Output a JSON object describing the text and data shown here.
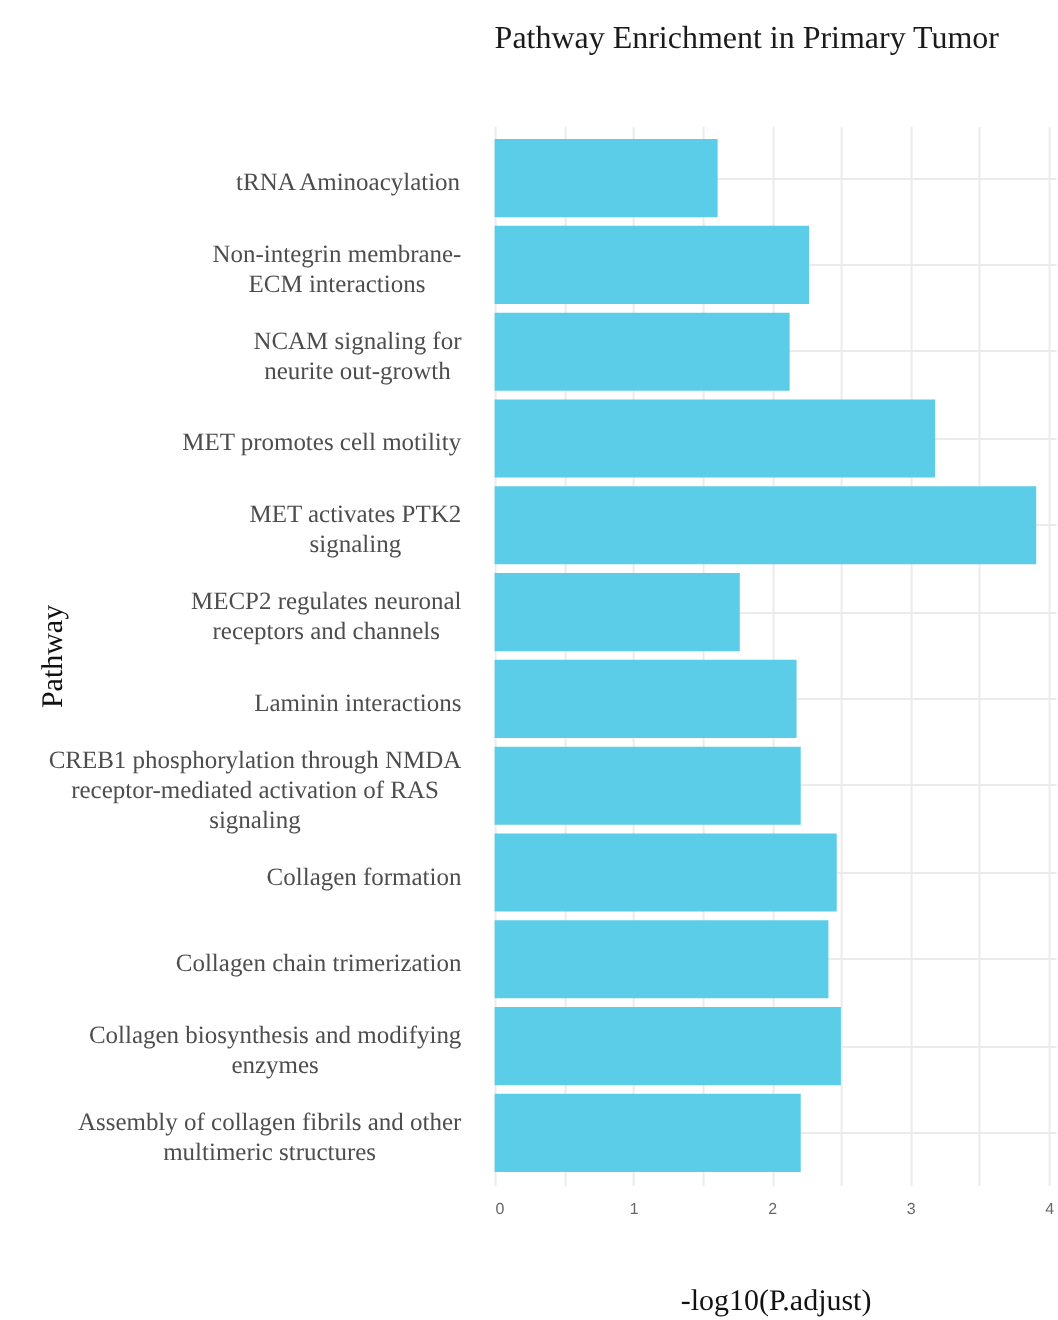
{
  "chart_data": {
    "type": "bar",
    "orientation": "horizontal",
    "title": "Pathway Enrichment in Primary Tumor",
    "xlabel": "-log10(P.adjust)",
    "ylabel": "Pathway",
    "categories": [
      "tRNA Aminoacylation",
      "Non-integrin membrane-\nECM interactions",
      "NCAM signaling for\nneurite out-growth",
      "MET promotes cell motility",
      "MET activates PTK2\nsignaling",
      "MECP2 regulates neuronal\nreceptors and channels",
      "Laminin interactions",
      "CREB1 phosphorylation through NMDA\nreceptor-mediated activation of RAS\nsignaling",
      "Collagen formation",
      "Collagen chain trimerization",
      "Collagen biosynthesis and modifying\nenzymes",
      "Assembly of collagen fibrils and other\nmultimeric structures"
    ],
    "values": [
      1.61,
      2.27,
      2.13,
      3.18,
      3.91,
      1.77,
      2.18,
      2.21,
      2.47,
      2.41,
      2.5,
      2.21
    ],
    "color": "#5bcde8",
    "xlim": [
      0,
      4.05
    ],
    "xticks": [
      0,
      {
        "value": 0.5,
        "label": null
      },
      1,
      {
        "value": 1.5,
        "label": null
      },
      2,
      {
        "value": 2.5,
        "label": null
      },
      3,
      {
        "value": 3.5,
        "label": null
      },
      4
    ],
    "grid": true
  }
}
